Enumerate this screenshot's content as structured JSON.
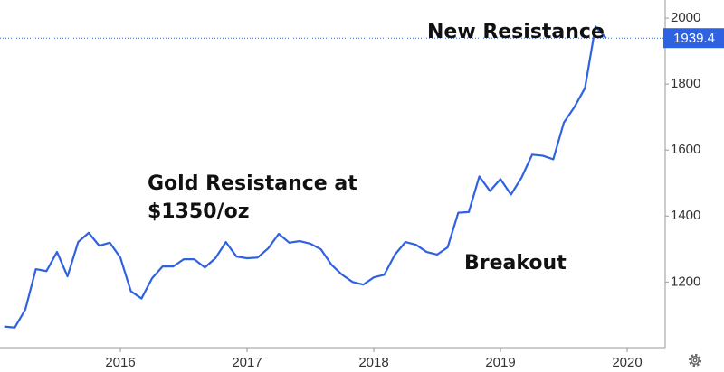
{
  "chart_data": {
    "type": "line",
    "annotations": [
      "New Resistance",
      "Gold Resistance at",
      "$1350/oz",
      "Breakout"
    ],
    "x": [
      2015.083,
      2015.167,
      2015.25,
      2015.333,
      2015.417,
      2015.5,
      2015.583,
      2015.667,
      2015.75,
      2015.833,
      2015.917,
      2016,
      2016.083,
      2016.167,
      2016.25,
      2016.333,
      2016.417,
      2016.5,
      2016.583,
      2016.667,
      2016.75,
      2016.833,
      2016.917,
      2017,
      2017.083,
      2017.167,
      2017.25,
      2017.333,
      2017.417,
      2017.5,
      2017.583,
      2017.667,
      2017.75,
      2017.833,
      2017.917,
      2018,
      2018.083,
      2018.167,
      2018.25,
      2018.333,
      2018.417,
      2018.5,
      2018.583,
      2018.667,
      2018.75,
      2018.833,
      2018.917,
      2019,
      2019.083,
      2019.167,
      2019.25,
      2019.333,
      2019.417,
      2019.5,
      2019.583,
      2019.667,
      2019.75,
      2019.833
    ],
    "series": [
      {
        "color": "#2f62e0",
        "values": [
          1065,
          1062,
          1117,
          1239,
          1233,
          1291,
          1217,
          1321,
          1349,
          1310,
          1319,
          1274,
          1172,
          1150,
          1211,
          1247,
          1247,
          1269,
          1269,
          1244,
          1272,
          1321,
          1277,
          1272,
          1274,
          1302,
          1346,
          1319,
          1324,
          1316,
          1299,
          1252,
          1222,
          1200,
          1192,
          1214,
          1222,
          1283,
          1321,
          1313,
          1291,
          1283,
          1305,
          1410,
          1412,
          1520,
          1476,
          1512,
          1465,
          1517,
          1586,
          1583,
          1572,
          1683,
          1730,
          1788,
          1975,
          1939.4
        ]
      }
    ],
    "xlim": [
      2015.05,
      2020.3
    ],
    "xticks": [
      2016,
      2017,
      2018,
      2019,
      2020
    ],
    "ylim": [
      1001,
      2055
    ],
    "yticks": [
      1200,
      1400,
      1600,
      1800,
      2000
    ],
    "grid": false
  }
}
